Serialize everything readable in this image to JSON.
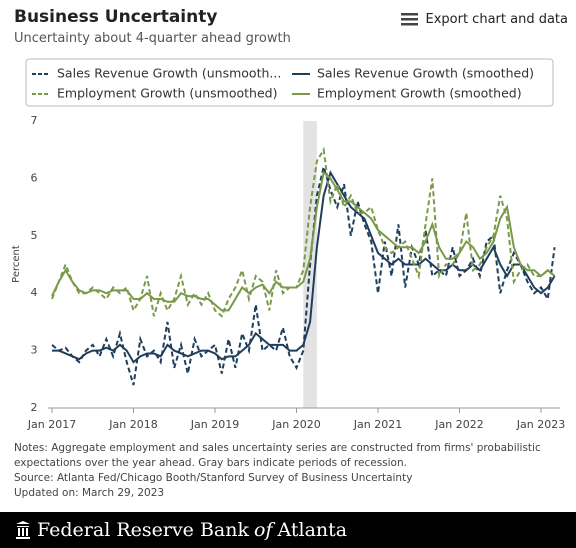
{
  "chart_data": {
    "type": "line",
    "title": "Business Uncertainty",
    "subtitle": "Uncertainty about 4-quarter ahead growth",
    "export_label": "Export chart and data",
    "ylabel": "Percent",
    "x": [
      "2017-01",
      "2017-02",
      "2017-03",
      "2017-04",
      "2017-05",
      "2017-06",
      "2017-07",
      "2017-08",
      "2017-09",
      "2017-10",
      "2017-11",
      "2017-12",
      "2018-01",
      "2018-02",
      "2018-03",
      "2018-04",
      "2018-05",
      "2018-06",
      "2018-07",
      "2018-08",
      "2018-09",
      "2018-10",
      "2018-11",
      "2018-12",
      "2019-01",
      "2019-02",
      "2019-03",
      "2019-04",
      "2019-05",
      "2019-06",
      "2019-07",
      "2019-08",
      "2019-09",
      "2019-10",
      "2019-11",
      "2019-12",
      "2020-01",
      "2020-02",
      "2020-03",
      "2020-04",
      "2020-05",
      "2020-06",
      "2020-07",
      "2020-08",
      "2020-09",
      "2020-10",
      "2020-11",
      "2020-12",
      "2021-01",
      "2021-02",
      "2021-03",
      "2021-04",
      "2021-05",
      "2021-06",
      "2021-07",
      "2021-08",
      "2021-09",
      "2021-10",
      "2021-11",
      "2021-12",
      "2022-01",
      "2022-02",
      "2022-03",
      "2022-04",
      "2022-05",
      "2022-06",
      "2022-07",
      "2022-08",
      "2022-09",
      "2022-10",
      "2022-11",
      "2022-12",
      "2023-01",
      "2023-02",
      "2023-03"
    ],
    "xticks": [
      {
        "value": "2017-01",
        "label": "Jan 2017"
      },
      {
        "value": "2018-01",
        "label": "Jan 2018"
      },
      {
        "value": "2019-01",
        "label": "Jan 2019"
      },
      {
        "value": "2020-01",
        "label": "Jan 2020"
      },
      {
        "value": "2021-01",
        "label": "Jan 2021"
      },
      {
        "value": "2022-01",
        "label": "Jan 2022"
      },
      {
        "value": "2023-01",
        "label": "Jan 2023"
      }
    ],
    "ylim": [
      2,
      7
    ],
    "yticks": [
      2,
      3,
      4,
      5,
      6,
      7
    ],
    "grid": false,
    "shaded_periods": [
      [
        "2020-02",
        "2020-04"
      ]
    ],
    "shade_color": "#e3e3e3",
    "series": [
      {
        "name": "Sales Revenue Growth (unsmooth...",
        "color": "#1f3d5c",
        "dashed": true,
        "values": [
          3.1,
          3.0,
          3.05,
          2.9,
          2.8,
          3.0,
          3.1,
          2.9,
          3.2,
          2.9,
          3.3,
          2.8,
          2.4,
          3.2,
          2.9,
          3.0,
          2.8,
          3.5,
          2.7,
          3.1,
          2.6,
          3.2,
          2.9,
          3.0,
          3.1,
          2.6,
          3.2,
          2.7,
          3.3,
          3.0,
          3.8,
          3.0,
          3.1,
          3.0,
          3.4,
          2.9,
          2.7,
          3.0,
          4.5,
          5.7,
          6.2,
          5.8,
          5.5,
          5.9,
          5.0,
          5.6,
          5.2,
          4.9,
          4.0,
          4.9,
          4.3,
          5.2,
          4.1,
          4.8,
          4.5,
          5.1,
          4.3,
          4.4,
          4.3,
          4.8,
          4.3,
          4.4,
          4.6,
          4.3,
          4.9,
          5.0,
          4.0,
          4.4,
          4.7,
          4.5,
          4.2,
          4.0,
          4.1,
          3.9,
          4.8
        ]
      },
      {
        "name": "Sales Revenue Growth (smoothed)",
        "color": "#1f3d5c",
        "dashed": false,
        "values": [
          3.0,
          3.0,
          2.95,
          2.9,
          2.85,
          2.95,
          3.0,
          3.0,
          3.05,
          3.0,
          3.1,
          3.0,
          2.8,
          2.9,
          2.95,
          2.95,
          2.9,
          3.1,
          3.0,
          2.95,
          2.9,
          2.95,
          3.0,
          3.0,
          2.95,
          2.85,
          2.9,
          2.9,
          3.0,
          3.1,
          3.3,
          3.2,
          3.1,
          3.1,
          3.1,
          3.0,
          3.0,
          3.1,
          3.5,
          4.8,
          5.7,
          6.1,
          5.9,
          5.7,
          5.5,
          5.4,
          5.3,
          5.0,
          4.7,
          4.6,
          4.5,
          4.6,
          4.5,
          4.5,
          4.5,
          4.6,
          4.5,
          4.4,
          4.4,
          4.5,
          4.4,
          4.4,
          4.5,
          4.4,
          4.6,
          4.8,
          4.5,
          4.3,
          4.5,
          4.5,
          4.3,
          4.1,
          4.0,
          4.1,
          4.3
        ]
      },
      {
        "name": "Employment Growth (unsmoothed)",
        "color": "#7a9a4a",
        "dashed": true,
        "values": [
          3.9,
          4.2,
          4.5,
          4.2,
          4.0,
          4.0,
          4.1,
          4.0,
          3.9,
          4.1,
          4.0,
          4.1,
          3.7,
          3.9,
          4.3,
          3.6,
          4.0,
          3.7,
          3.9,
          4.3,
          3.8,
          4.0,
          3.8,
          4.0,
          3.7,
          3.6,
          3.9,
          4.1,
          4.4,
          3.9,
          4.3,
          4.2,
          3.7,
          4.4,
          4.0,
          4.1,
          4.1,
          4.4,
          5.5,
          6.3,
          6.5,
          5.6,
          5.9,
          5.5,
          5.7,
          5.4,
          5.4,
          5.5,
          5.1,
          4.8,
          4.7,
          4.8,
          4.9,
          4.6,
          4.3,
          5.2,
          6.0,
          4.3,
          4.5,
          4.5,
          4.7,
          5.4,
          4.4,
          4.5,
          4.8,
          5.0,
          5.7,
          5.3,
          4.2,
          4.4,
          4.5,
          4.3,
          4.3,
          4.4,
          4.3
        ]
      },
      {
        "name": "Employment Growth (smoothed)",
        "color": "#7a9a4a",
        "dashed": false,
        "values": [
          3.95,
          4.2,
          4.4,
          4.2,
          4.05,
          4.0,
          4.05,
          4.05,
          4.0,
          4.05,
          4.05,
          4.05,
          3.9,
          3.9,
          4.0,
          3.9,
          3.9,
          3.85,
          3.85,
          4.0,
          3.95,
          3.95,
          3.9,
          3.9,
          3.8,
          3.7,
          3.7,
          3.9,
          4.1,
          4.0,
          4.1,
          4.15,
          4.0,
          4.2,
          4.1,
          4.1,
          4.1,
          4.2,
          4.6,
          5.5,
          6.1,
          6.0,
          5.8,
          5.6,
          5.6,
          5.5,
          5.4,
          5.3,
          5.1,
          5.0,
          4.9,
          4.8,
          4.8,
          4.8,
          4.7,
          4.9,
          5.2,
          4.8,
          4.6,
          4.6,
          4.7,
          4.9,
          4.8,
          4.6,
          4.7,
          4.9,
          5.3,
          5.5,
          4.8,
          4.5,
          4.4,
          4.4,
          4.3,
          4.4,
          4.3
        ]
      }
    ],
    "notes": [
      "Notes: Aggregate employment and sales uncertainty series are constructed from firms' probabilistic expectations over the year ahead. Gray bars indicate periods of recession.",
      "Source: Atlanta Fed/Chicago Booth/Stanford Survey of Business Uncertainty",
      "Updated on: March 29, 2023"
    ],
    "footer": [
      "Federal Reserve Bank",
      "of",
      "Atlanta"
    ]
  }
}
